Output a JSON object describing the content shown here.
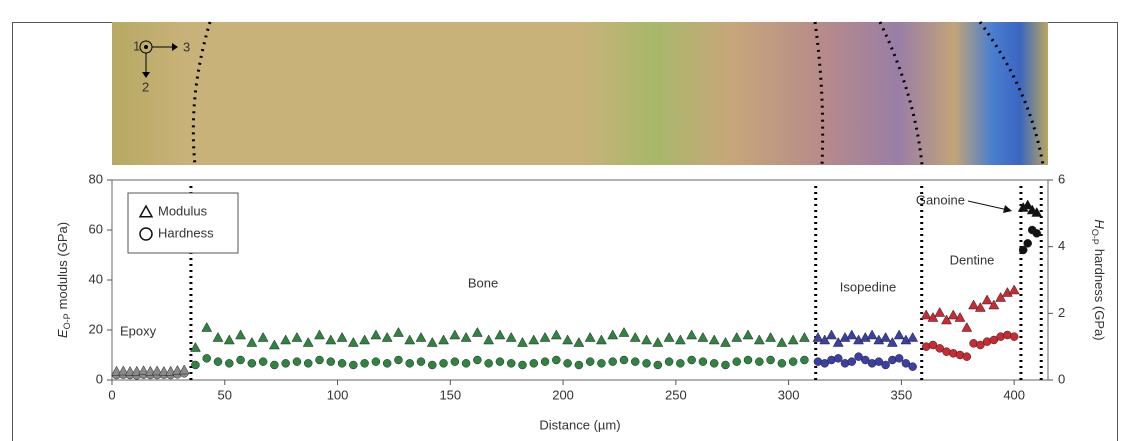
{
  "micrograph": {
    "axis_labels": [
      "1",
      "3",
      "2"
    ]
  },
  "chart_data": {
    "type": "scatter",
    "xlabel": "Distance (µm)",
    "ylabel": {
      "symbol": "E",
      "subscript": "O-P",
      "text": "modulus (GPa)"
    },
    "y2label": {
      "symbol": "H",
      "subscript": "O-P",
      "text": "hardness (GPa)"
    },
    "xlim": [
      0,
      415
    ],
    "xticks": [
      0,
      50,
      100,
      150,
      200,
      250,
      300,
      350,
      400
    ],
    "ylim": [
      0,
      80
    ],
    "yticks": [
      0,
      20,
      40,
      60,
      80
    ],
    "y2lim": [
      0,
      6
    ],
    "y2ticks": [
      0,
      2,
      4,
      6
    ],
    "boundaries": [
      35,
      312,
      359,
      403,
      412
    ],
    "legend": [
      {
        "label": "Modulus",
        "marker": "triangle"
      },
      {
        "label": "Hardness",
        "marker": "circle"
      }
    ],
    "regions": [
      {
        "name": "Epoxy",
        "color": "#8a8a8a",
        "x": [
          2,
          5,
          8,
          11,
          14,
          17,
          20,
          23,
          26,
          29,
          32
        ],
        "modulus": [
          3.5,
          3.6,
          3.4,
          3.5,
          3.7,
          3.5,
          3.6,
          3.4,
          3.5,
          3.8,
          4.0
        ],
        "hardness": [
          0.15,
          0.16,
          0.15,
          0.14,
          0.16,
          0.15,
          0.15,
          0.16,
          0.15,
          0.17,
          0.2
        ]
      },
      {
        "name": "Bone",
        "color": "#2e8540",
        "x": [
          37,
          42,
          47,
          52,
          57,
          62,
          67,
          72,
          77,
          82,
          87,
          92,
          97,
          102,
          107,
          112,
          117,
          122,
          127,
          132,
          137,
          142,
          147,
          152,
          157,
          162,
          167,
          172,
          177,
          182,
          187,
          192,
          197,
          202,
          207,
          212,
          217,
          222,
          227,
          232,
          237,
          242,
          247,
          252,
          257,
          262,
          267,
          272,
          277,
          282,
          287,
          292,
          297,
          302,
          307
        ],
        "modulus": [
          13,
          21,
          17,
          16,
          18,
          15,
          17,
          14,
          16,
          17,
          15,
          18,
          16,
          17,
          15,
          16,
          18,
          17,
          19,
          16,
          17,
          15,
          16,
          18,
          17,
          19,
          16,
          18,
          17,
          15,
          16,
          17,
          18,
          16,
          15,
          17,
          16,
          18,
          19,
          17,
          16,
          15,
          17,
          16,
          18,
          17,
          16,
          15,
          17,
          18,
          16,
          17,
          15,
          16,
          17
        ],
        "hardness": [
          0.45,
          0.65,
          0.55,
          0.5,
          0.6,
          0.5,
          0.55,
          0.45,
          0.5,
          0.55,
          0.5,
          0.6,
          0.55,
          0.5,
          0.45,
          0.5,
          0.55,
          0.5,
          0.6,
          0.5,
          0.55,
          0.45,
          0.5,
          0.55,
          0.5,
          0.6,
          0.5,
          0.55,
          0.5,
          0.45,
          0.5,
          0.55,
          0.6,
          0.5,
          0.45,
          0.55,
          0.5,
          0.55,
          0.6,
          0.55,
          0.5,
          0.45,
          0.55,
          0.5,
          0.6,
          0.55,
          0.5,
          0.45,
          0.55,
          0.6,
          0.55,
          0.6,
          0.5,
          0.55,
          0.6
        ]
      },
      {
        "name": "Isopedine",
        "color": "#3b3fa6",
        "x": [
          313,
          316,
          319,
          322,
          325,
          328,
          331,
          334,
          337,
          340,
          343,
          346,
          349,
          352,
          355
        ],
        "modulus": [
          17,
          16,
          18,
          15,
          17,
          18,
          16,
          17,
          18,
          16,
          17,
          15,
          18,
          16,
          17
        ],
        "hardness": [
          0.55,
          0.5,
          0.6,
          0.65,
          0.5,
          0.55,
          0.7,
          0.6,
          0.5,
          0.55,
          0.45,
          0.6,
          0.65,
          0.5,
          0.4
        ]
      },
      {
        "name": "Dentine",
        "color": "#cc2a32",
        "x": [
          361,
          364,
          367,
          370,
          373,
          376,
          379,
          382,
          385,
          388,
          391,
          394,
          397,
          400
        ],
        "modulus": [
          26,
          25,
          27,
          24,
          26,
          25,
          21,
          30,
          29,
          32,
          30,
          33,
          35,
          36
        ],
        "hardness": [
          1.0,
          1.05,
          0.95,
          0.85,
          0.8,
          0.75,
          0.7,
          1.1,
          1.05,
          1.15,
          1.2,
          1.3,
          1.35,
          1.3
        ]
      },
      {
        "name": "Ganoine",
        "color": "#111111",
        "x": [
          404,
          406,
          408,
          410
        ],
        "modulus": [
          69,
          70,
          68,
          67
        ],
        "hardness": [
          3.9,
          4.1,
          4.5,
          4.4
        ]
      }
    ]
  }
}
